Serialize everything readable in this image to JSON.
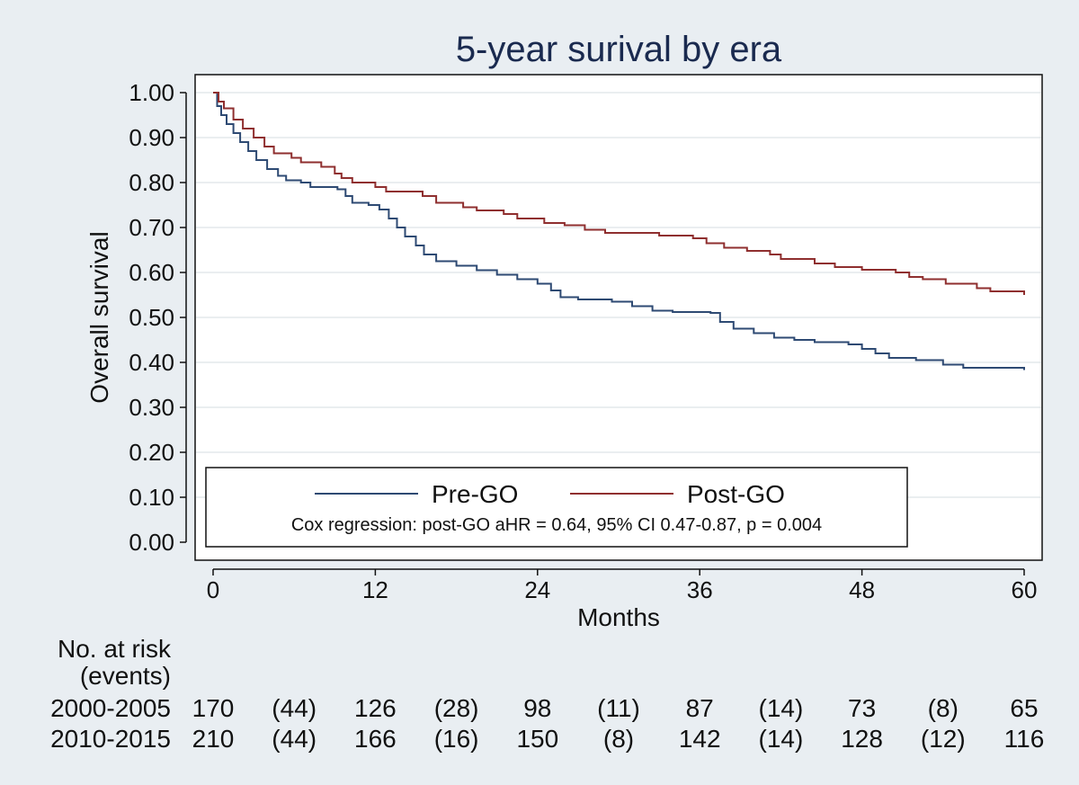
{
  "chart_data": {
    "type": "line",
    "title": "5-year surival by era",
    "xlabel": "Months",
    "ylabel": "Overall survival",
    "xlim": [
      0,
      60
    ],
    "ylim": [
      0,
      1
    ],
    "x_ticks": [
      0,
      12,
      24,
      36,
      48,
      60
    ],
    "y_ticks": [
      "0.00",
      "0.10",
      "0.20",
      "0.30",
      "0.40",
      "0.50",
      "0.60",
      "0.70",
      "0.80",
      "0.90",
      "1.00"
    ],
    "grid": true,
    "series": [
      {
        "name": "Pre-GO",
        "color": "#2e4a73",
        "points": [
          [
            0,
            1.0
          ],
          [
            0.3,
            0.97
          ],
          [
            0.6,
            0.95
          ],
          [
            1,
            0.93
          ],
          [
            1.5,
            0.91
          ],
          [
            2,
            0.89
          ],
          [
            2.6,
            0.87
          ],
          [
            3.2,
            0.85
          ],
          [
            4,
            0.83
          ],
          [
            4.8,
            0.815
          ],
          [
            5.4,
            0.805
          ],
          [
            6.5,
            0.8
          ],
          [
            7.2,
            0.79
          ],
          [
            9.2,
            0.785
          ],
          [
            9.8,
            0.77
          ],
          [
            10.3,
            0.755
          ],
          [
            11.5,
            0.75
          ],
          [
            12.3,
            0.74
          ],
          [
            13,
            0.72
          ],
          [
            13.6,
            0.7
          ],
          [
            14.2,
            0.68
          ],
          [
            15,
            0.66
          ],
          [
            15.6,
            0.64
          ],
          [
            16.5,
            0.625
          ],
          [
            18,
            0.615
          ],
          [
            19.5,
            0.605
          ],
          [
            21,
            0.595
          ],
          [
            22.5,
            0.585
          ],
          [
            24,
            0.575
          ],
          [
            25,
            0.56
          ],
          [
            25.7,
            0.545
          ],
          [
            27,
            0.54
          ],
          [
            29.5,
            0.535
          ],
          [
            31,
            0.525
          ],
          [
            32.5,
            0.515
          ],
          [
            34,
            0.512
          ],
          [
            36.8,
            0.51
          ],
          [
            37.5,
            0.49
          ],
          [
            38.5,
            0.475
          ],
          [
            40,
            0.465
          ],
          [
            41.5,
            0.455
          ],
          [
            43,
            0.45
          ],
          [
            44.5,
            0.445
          ],
          [
            47,
            0.44
          ],
          [
            48,
            0.43
          ],
          [
            49,
            0.42
          ],
          [
            50,
            0.41
          ],
          [
            52,
            0.405
          ],
          [
            54,
            0.395
          ],
          [
            55.5,
            0.388
          ],
          [
            60,
            0.383
          ]
        ]
      },
      {
        "name": "Post-GO",
        "color": "#8f2f2f",
        "points": [
          [
            0,
            1.0
          ],
          [
            0.4,
            0.98
          ],
          [
            0.8,
            0.965
          ],
          [
            1.5,
            0.94
          ],
          [
            2.2,
            0.92
          ],
          [
            3,
            0.9
          ],
          [
            3.8,
            0.88
          ],
          [
            4.5,
            0.865
          ],
          [
            5.8,
            0.855
          ],
          [
            6.5,
            0.845
          ],
          [
            8,
            0.835
          ],
          [
            9,
            0.82
          ],
          [
            9.5,
            0.81
          ],
          [
            10.3,
            0.8
          ],
          [
            12,
            0.79
          ],
          [
            12.8,
            0.78
          ],
          [
            15.5,
            0.77
          ],
          [
            16.5,
            0.755
          ],
          [
            18.5,
            0.745
          ],
          [
            19.5,
            0.738
          ],
          [
            21.5,
            0.73
          ],
          [
            22.5,
            0.72
          ],
          [
            24.5,
            0.71
          ],
          [
            26,
            0.705
          ],
          [
            27.5,
            0.695
          ],
          [
            29,
            0.688
          ],
          [
            33,
            0.682
          ],
          [
            35.5,
            0.676
          ],
          [
            36.5,
            0.665
          ],
          [
            37.8,
            0.655
          ],
          [
            39.5,
            0.648
          ],
          [
            41.2,
            0.64
          ],
          [
            42,
            0.63
          ],
          [
            44.5,
            0.62
          ],
          [
            46,
            0.612
          ],
          [
            48,
            0.606
          ],
          [
            50.5,
            0.6
          ],
          [
            51.5,
            0.59
          ],
          [
            52.5,
            0.585
          ],
          [
            54.2,
            0.575
          ],
          [
            56.5,
            0.565
          ],
          [
            57.5,
            0.558
          ],
          [
            60,
            0.55
          ]
        ]
      }
    ],
    "legend": {
      "position": "bottom-inside",
      "items": [
        "Pre-GO",
        "Post-GO"
      ],
      "note": "Cox regression: post-GO aHR = 0.64, 95% CI 0.47-0.87, p = 0.004"
    },
    "risk_table": {
      "header": [
        "No. at risk",
        "(events)"
      ],
      "rows": [
        {
          "label": "2000-2005",
          "cells": [
            "170",
            "(44)",
            "126",
            "(28)",
            "98",
            "(11)",
            "87",
            "(14)",
            "73",
            "(8)",
            "65"
          ]
        },
        {
          "label": "2010-2015",
          "cells": [
            "210",
            "(44)",
            "166",
            "(16)",
            "150",
            "(8)",
            "142",
            "(14)",
            "128",
            "(12)",
            "116"
          ]
        }
      ]
    }
  }
}
